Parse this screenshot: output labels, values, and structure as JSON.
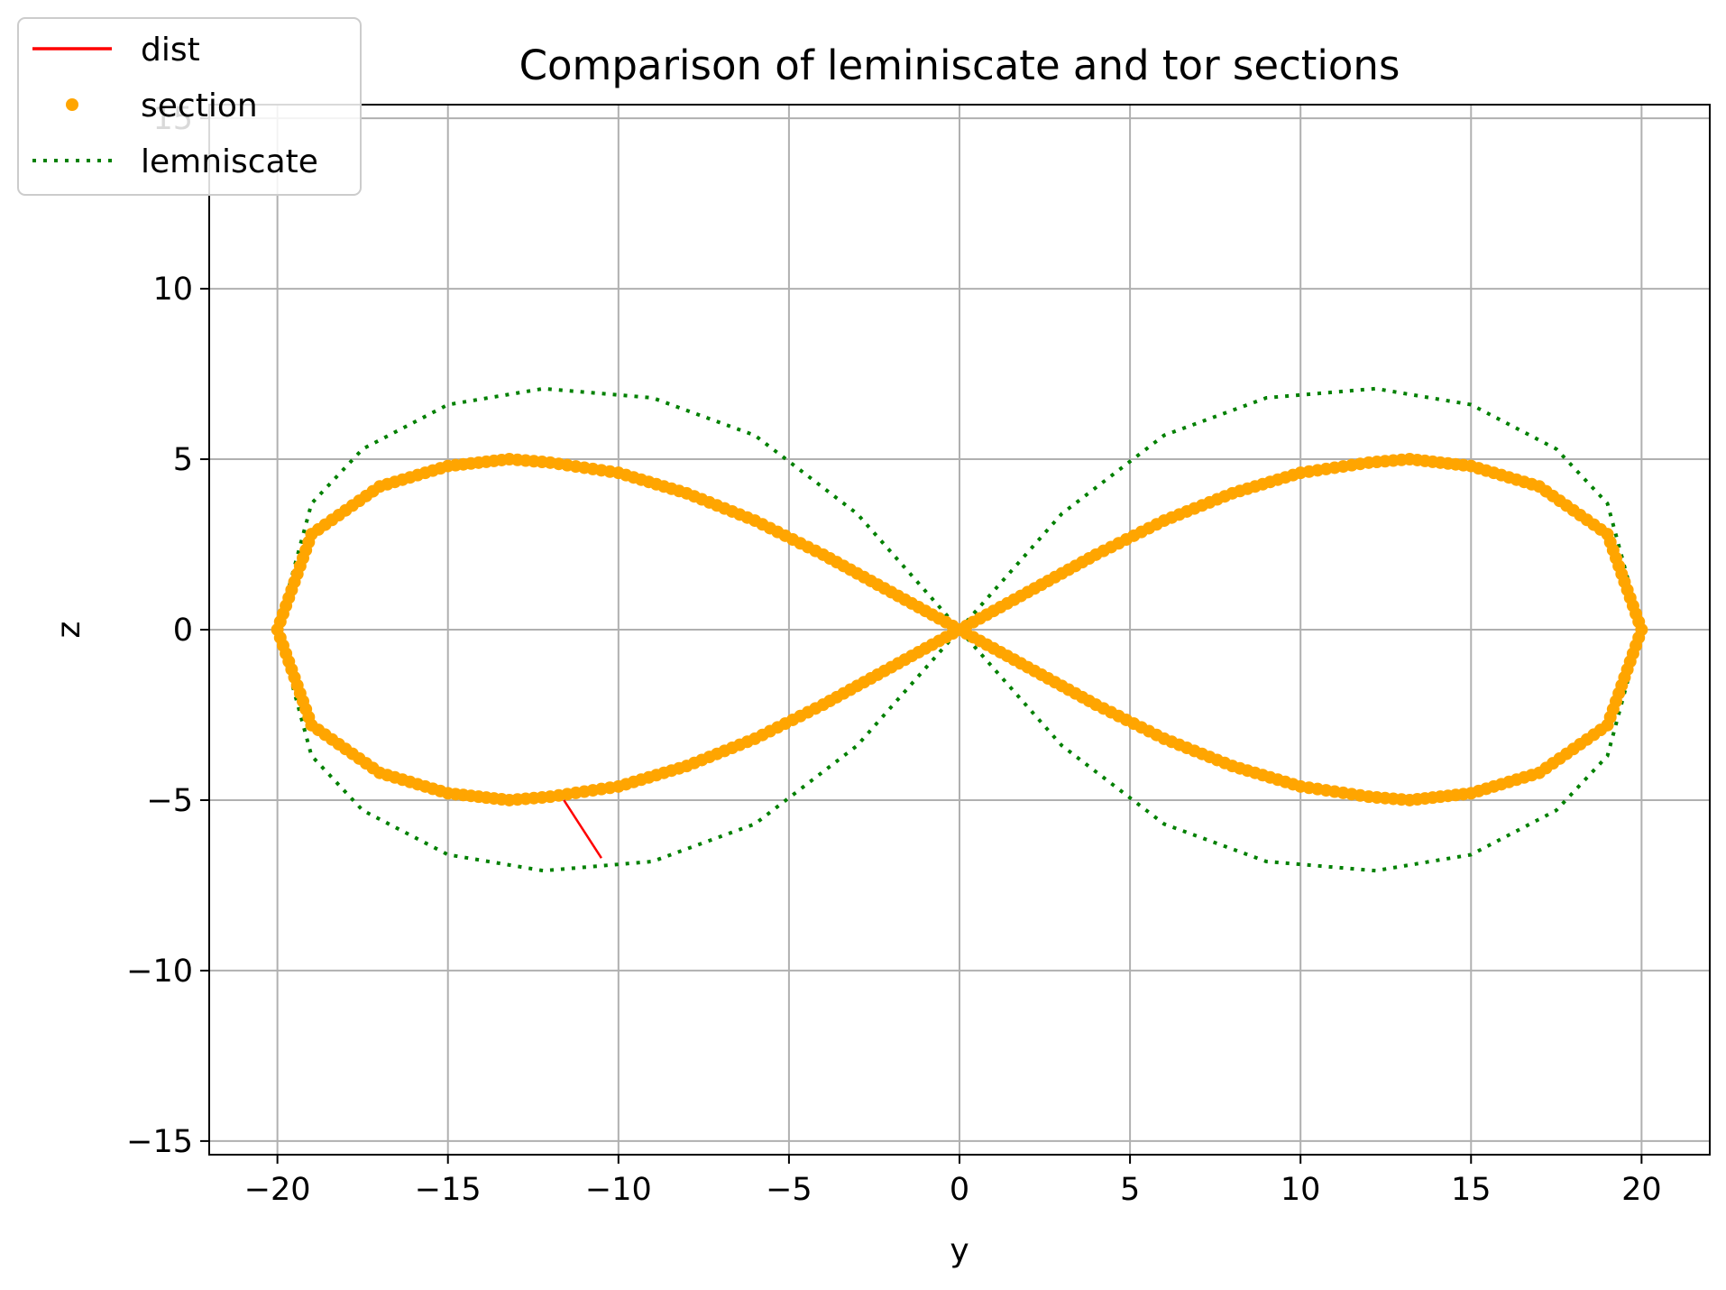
{
  "chart_data": {
    "type": "line",
    "title": "Comparison of leminiscate and tor sections",
    "xlabel": "y",
    "ylabel": "z",
    "xlim": [
      -22,
      22
    ],
    "ylim": [
      -15.4,
      15.4
    ],
    "xticks": [
      -20,
      -15,
      -10,
      -5,
      0,
      5,
      10,
      15,
      20
    ],
    "yticks": [
      -15,
      -10,
      -5,
      0,
      5,
      10,
      15
    ],
    "xtick_labels": [
      "−20",
      "−15",
      "−10",
      "−5",
      "0",
      "5",
      "10",
      "15",
      "20"
    ],
    "ytick_labels": [
      "−15",
      "−10",
      "−5",
      "0",
      "5",
      "10",
      "15"
    ],
    "grid": true,
    "legend_position": "top-left",
    "legend": [
      {
        "name": "dist",
        "style": "solid",
        "color": "#ff0000"
      },
      {
        "name": "section",
        "style": "dots",
        "color": "#ffa500"
      },
      {
        "name": "lemniscate",
        "style": "dotted",
        "color": "#008000"
      }
    ],
    "series": [
      {
        "name": "dist",
        "type": "line",
        "color": "#ff0000",
        "x": [
          -11.6,
          -10.5
        ],
        "y": [
          -5.0,
          -6.7
        ]
      },
      {
        "name": "section",
        "type": "scatter",
        "color": "#ffa500",
        "x": [
          0,
          2,
          4,
          6,
          8,
          10,
          12,
          13.2,
          15,
          17,
          19,
          20,
          19,
          17,
          15,
          13.2,
          12,
          10,
          8,
          6,
          4,
          2,
          0,
          -2,
          -4,
          -6,
          -8,
          -10,
          -12,
          -13.2,
          -15,
          -17,
          -19,
          -20,
          -19,
          -17,
          -15,
          -13.2,
          -12,
          -10,
          -8,
          -6,
          -4,
          -2,
          0
        ],
        "y": [
          0,
          1.1,
          2.2,
          3.2,
          4.0,
          4.6,
          4.9,
          5.0,
          4.8,
          4.2,
          2.8,
          0,
          -2.8,
          -4.2,
          -4.8,
          -5.0,
          -4.9,
          -4.6,
          -4.0,
          -3.2,
          -2.2,
          -1.1,
          0,
          1.1,
          2.2,
          3.2,
          4.0,
          4.6,
          4.9,
          5.0,
          4.8,
          4.2,
          2.8,
          0,
          -2.8,
          -4.2,
          -4.8,
          -5.0,
          -4.9,
          -4.6,
          -4.0,
          -3.2,
          -2.2,
          -1.1,
          0
        ]
      },
      {
        "name": "lemniscate",
        "type": "dotted-line",
        "color": "#008000",
        "x": [
          0,
          3,
          6,
          9,
          12.2,
          15,
          17.5,
          19,
          20,
          19,
          17.5,
          15,
          12.2,
          9,
          6,
          3,
          0,
          -3,
          -6,
          -9,
          -12.2,
          -15,
          -17.5,
          -19,
          -20,
          -19,
          -17.5,
          -15,
          -12.2,
          -9,
          -6,
          -3,
          0
        ],
        "y": [
          0,
          3.4,
          5.7,
          6.8,
          7.07,
          6.6,
          5.3,
          3.7,
          0,
          -3.7,
          -5.3,
          -6.6,
          -7.07,
          -6.8,
          -5.7,
          -3.4,
          0,
          3.4,
          5.7,
          6.8,
          7.07,
          6.6,
          5.3,
          3.7,
          0,
          -3.7,
          -5.3,
          -6.6,
          -7.07,
          -6.8,
          -5.7,
          -3.4,
          0
        ]
      }
    ]
  }
}
